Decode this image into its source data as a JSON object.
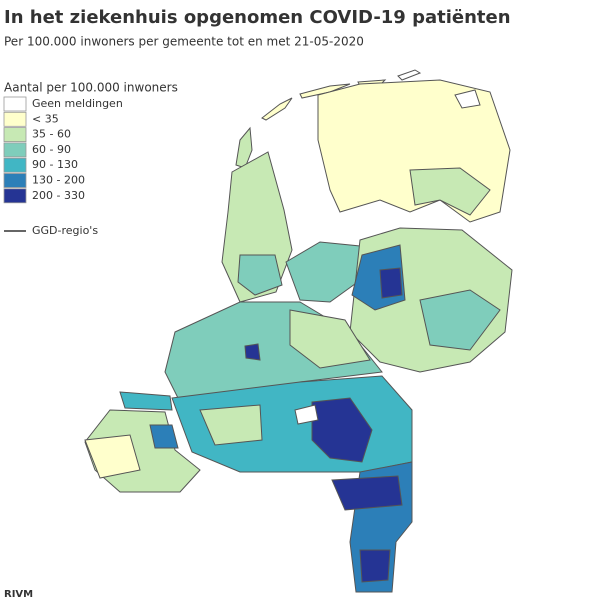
{
  "header": {
    "title": "In het ziekenhuis opgenomen COVID-19 patiënten",
    "subtitle": "Per 100.000 inwoners per gemeente tot en met 21-05-2020"
  },
  "legend": {
    "title": "Aantal per 100.000 inwoners",
    "items": [
      {
        "label": "Geen meldingen",
        "color": "#ffffff"
      },
      {
        "label": "< 35",
        "color": "#ffffcc"
      },
      {
        "label": "35 - 60",
        "color": "#c7e9b4"
      },
      {
        "label": "60 - 90",
        "color": "#7fcdbb"
      },
      {
        "label": "90 - 130",
        "color": "#41b6c4"
      },
      {
        "label": "130 - 200",
        "color": "#2c7fb8"
      },
      {
        "label": "200 - 330",
        "color": "#253494"
      }
    ],
    "boundary_label": "GGD-regio's"
  },
  "footer": {
    "source": "RIVM"
  }
}
